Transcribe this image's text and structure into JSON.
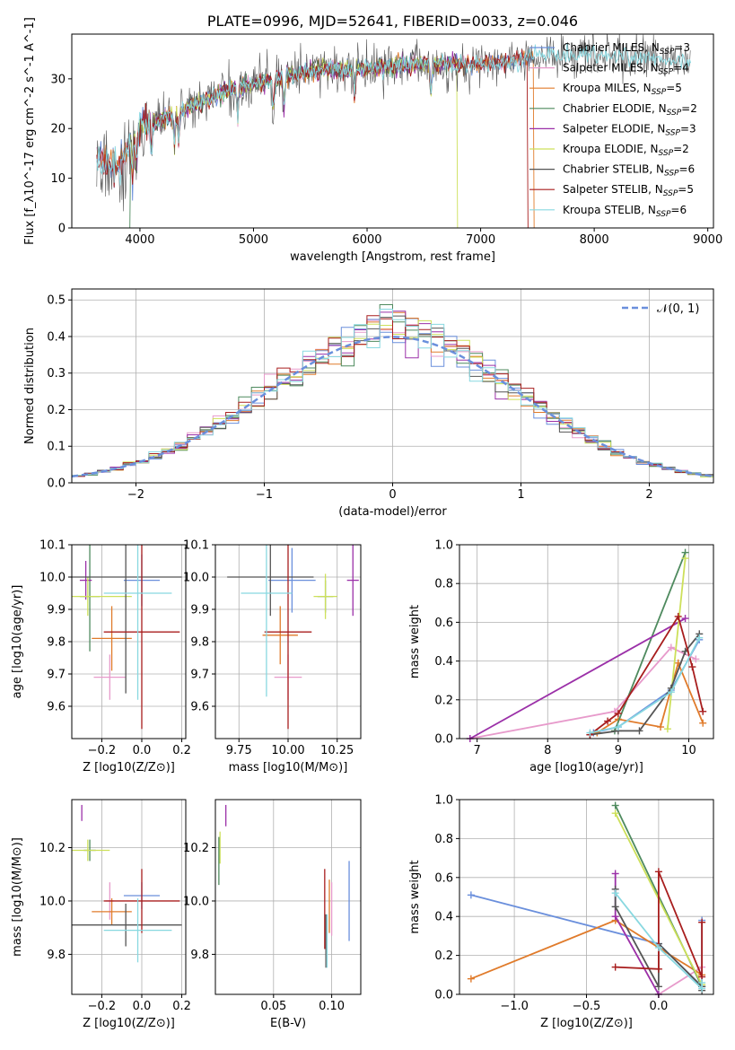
{
  "colors": {
    "Chabrier MILES": "#6a8fdc",
    "Salpeter MILES": "#e79acb",
    "Kroupa MILES": "#e07b2b",
    "Chabrier ELODIE": "#4e8a5e",
    "Salpeter ELODIE": "#9b30a8",
    "Kroupa ELODIE": "#cde05a",
    "Chabrier STELIB": "#555555",
    "Salpeter STELIB": "#a81e1e",
    "Kroupa STELIB": "#88d8e0",
    "gaussian": "#6a8fdc"
  },
  "chart_data": [
    {
      "type": "line",
      "title": "PLATE=0996, MJD=52641, FIBERID=0033, z=0.046",
      "xlabel": "wavelength [Angstrom, rest frame]",
      "ylabel": "Flux [f_λ10^-17 erg cm^-2 s^-1 A^-1]",
      "xlim": [
        3400,
        9050
      ],
      "ylim": [
        0,
        39
      ],
      "xticks": [
        4000,
        5000,
        6000,
        7000,
        8000,
        9000
      ],
      "yticks": [
        0,
        10,
        20,
        30
      ],
      "legend_position": "top-right",
      "series": [
        {
          "name": "Chabrier MILES, N_SSP=3",
          "name_main": "Chabrier MILES, N",
          "name_sub": "SSP",
          "name_end": "=3",
          "x_range": [
            3620,
            7480
          ]
        },
        {
          "name": "Salpeter MILES, N_SSP=4",
          "name_main": "Salpeter MILES, N",
          "name_sub": "SSP",
          "name_end": "=4",
          "x_range": [
            3620,
            7480
          ]
        },
        {
          "name": "Kroupa MILES, N_SSP=5",
          "name_main": "Kroupa MILES, N",
          "name_sub": "SSP",
          "name_end": "=5",
          "x_range": [
            3620,
            7480
          ]
        },
        {
          "name": "Chabrier ELODIE, N_SSP=2",
          "name_main": "Chabrier ELODIE, N",
          "name_sub": "SSP",
          "name_end": "=2",
          "x_range": [
            3900,
            6800
          ]
        },
        {
          "name": "Salpeter ELODIE, N_SSP=3",
          "name_main": "Salpeter ELODIE, N",
          "name_sub": "SSP",
          "name_end": "=3",
          "x_range": [
            3900,
            6800
          ]
        },
        {
          "name": "Kroupa ELODIE, N_SSP=2",
          "name_main": "Kroupa ELODIE, N",
          "name_sub": "SSP",
          "name_end": "=2",
          "x_range": [
            3900,
            6800
          ]
        },
        {
          "name": "Chabrier STELIB, N_SSP=6",
          "name_main": "Chabrier STELIB, N",
          "name_sub": "SSP",
          "name_end": "=6",
          "x_range": [
            3620,
            8850
          ]
        },
        {
          "name": "Salpeter STELIB, N_SSP=5",
          "name_main": "Salpeter STELIB, N",
          "name_sub": "SSP",
          "name_end": "=5",
          "x_range": [
            3620,
            7420
          ]
        },
        {
          "name": "Kroupa STELIB, N_SSP=6",
          "name_main": "Kroupa STELIB, N",
          "name_sub": "SSP",
          "name_end": "=6",
          "x_range": [
            3620,
            8850
          ]
        }
      ],
      "continuum": {
        "x": [
          3620,
          3800,
          4000,
          4400,
          4800,
          5200,
          5600,
          6000,
          6400,
          6800,
          7200,
          7500,
          8000,
          8500,
          8850
        ],
        "y": [
          14,
          12,
          20,
          24,
          28,
          30,
          32,
          32,
          33,
          33,
          33,
          35,
          35,
          34,
          33
        ]
      }
    },
    {
      "type": "area",
      "xlabel": "(data-model)/error",
      "ylabel": "Normed distribution",
      "xlim": [
        -2.5,
        2.5
      ],
      "ylim": [
        0,
        0.53
      ],
      "xticks": [
        -2,
        -1,
        0,
        1,
        2
      ],
      "yticks": [
        0.0,
        0.1,
        0.2,
        0.3,
        0.4,
        0.5
      ],
      "grid": true,
      "legend_position": "top-right",
      "gaussian_label": "𝒩(0, 1)",
      "bin_width": 0.1
    },
    {
      "type": "scatter",
      "xlabel": "Z [log10(Z/Z⊙)]",
      "ylabel": "age  [log10(age/yr)]",
      "xlim": [
        -0.35,
        0.22
      ],
      "ylim": [
        9.5,
        10.1
      ],
      "xticks": [
        -0.2,
        0.0,
        0.2
      ],
      "yticks": [
        9.6,
        9.7,
        9.8,
        9.9,
        10.0,
        10.1
      ],
      "grid": true,
      "points": [
        {
          "series": "Chabrier MILES",
          "x": 0.0,
          "y": 9.99,
          "xerr": 0.09,
          "yerr": 0.08
        },
        {
          "series": "Salpeter MILES",
          "x": -0.16,
          "y": 9.69,
          "xerr": 0.08,
          "yerr": 0.07
        },
        {
          "series": "Kroupa MILES",
          "x": -0.15,
          "y": 9.81,
          "xerr": 0.1,
          "yerr": 0.1
        },
        {
          "series": "Chabrier ELODIE",
          "x": -0.26,
          "y": 9.94,
          "xerr": 0.05,
          "yerr": 0.17
        },
        {
          "series": "Salpeter ELODIE",
          "x": -0.28,
          "y": 9.99,
          "xerr": 0.03,
          "yerr": 0.06
        },
        {
          "series": "Kroupa ELODIE",
          "x": -0.27,
          "y": 9.94,
          "xerr": 0.22,
          "yerr": 0.06
        },
        {
          "series": "Chabrier STELIB",
          "x": -0.08,
          "y": 10.0,
          "xerr": 0.28,
          "yerr": 0.36
        },
        {
          "series": "Salpeter STELIB",
          "x": 0.0,
          "y": 9.83,
          "xerr": 0.19,
          "yerr": 0.3
        },
        {
          "series": "Kroupa STELIB",
          "x": -0.02,
          "y": 9.95,
          "xerr": 0.17,
          "yerr": 0.33
        }
      ]
    },
    {
      "type": "scatter",
      "xlabel": "mass [log10(M/M⊙)]",
      "ylabel": "",
      "xlim": [
        9.63,
        10.37
      ],
      "ylim": [
        9.5,
        10.1
      ],
      "xticks": [
        9.75,
        10.0,
        10.25
      ],
      "yticks": [
        9.6,
        9.7,
        9.8,
        9.9,
        10.0,
        10.1
      ],
      "grid": true,
      "points": [
        {
          "series": "Chabrier MILES",
          "x": 10.02,
          "y": 9.99,
          "xerr": 0.12,
          "yerr": 0.1
        },
        {
          "series": "Salpeter MILES",
          "x": 10.0,
          "y": 9.69,
          "xerr": 0.07,
          "yerr": 0.07
        },
        {
          "series": "Kroupa MILES",
          "x": 9.96,
          "y": 9.82,
          "xerr": 0.09,
          "yerr": 0.09
        },
        {
          "series": "Chabrier ELODIE",
          "x": 10.19,
          "y": 9.94,
          "xerr": 0.04,
          "yerr": 0.05
        },
        {
          "series": "Salpeter ELODIE",
          "x": 10.33,
          "y": 9.99,
          "xerr": 0.03,
          "yerr": 0.11
        },
        {
          "series": "Kroupa ELODIE",
          "x": 10.19,
          "y": 9.94,
          "xerr": 0.06,
          "yerr": 0.07
        },
        {
          "series": "Chabrier STELIB",
          "x": 9.91,
          "y": 10.0,
          "xerr": 0.22,
          "yerr": 0.12
        },
        {
          "series": "Salpeter STELIB",
          "x": 10.0,
          "y": 9.83,
          "xerr": 0.12,
          "yerr": 0.3
        },
        {
          "series": "Kroupa STELIB",
          "x": 9.89,
          "y": 9.95,
          "xerr": 0.13,
          "yerr": 0.32
        }
      ]
    },
    {
      "type": "line",
      "xlabel": "age  [log10(age/yr)]",
      "ylabel": "mass weight",
      "xlim": [
        6.75,
        10.35
      ],
      "ylim": [
        0,
        1.0
      ],
      "xticks": [
        7,
        8,
        9,
        10
      ],
      "yticks": [
        0.0,
        0.2,
        0.4,
        0.6,
        0.8,
        1.0
      ],
      "grid": true,
      "series": [
        {
          "name": "Chabrier MILES",
          "x": [
            8.65,
            9.0,
            9.75,
            10.15
          ],
          "y": [
            0.03,
            0.06,
            0.25,
            0.51
          ]
        },
        {
          "name": "Salpeter MILES",
          "x": [
            6.9,
            8.95,
            9.75,
            10.1
          ],
          "y": [
            0.0,
            0.14,
            0.47,
            0.41
          ]
        },
        {
          "name": "Kroupa MILES",
          "x": [
            8.7,
            9.0,
            9.6,
            9.85,
            10.2
          ],
          "y": [
            0.03,
            0.1,
            0.06,
            0.39,
            0.08
          ]
        },
        {
          "name": "Chabrier ELODIE",
          "x": [
            8.95,
            9.95
          ],
          "y": [
            0.04,
            0.96
          ]
        },
        {
          "name": "Salpeter ELODIE",
          "x": [
            6.9,
            9.95
          ],
          "y": [
            0.0,
            0.62
          ]
        },
        {
          "name": "Kroupa ELODIE",
          "x": [
            9.7,
            9.95
          ],
          "y": [
            0.05,
            0.93
          ]
        },
        {
          "name": "Chabrier STELIB",
          "x": [
            8.6,
            9.0,
            9.3,
            9.75,
            9.95,
            10.15
          ],
          "y": [
            0.02,
            0.04,
            0.04,
            0.26,
            0.45,
            0.54
          ]
        },
        {
          "name": "Salpeter STELIB",
          "x": [
            8.6,
            8.85,
            9.0,
            9.85,
            10.05,
            10.2
          ],
          "y": [
            0.02,
            0.09,
            0.13,
            0.63,
            0.37,
            0.14
          ]
        },
        {
          "name": "Kroupa STELIB",
          "x": [
            8.6,
            9.0,
            9.75,
            10.15
          ],
          "y": [
            0.03,
            0.06,
            0.24,
            0.52
          ]
        }
      ]
    },
    {
      "type": "scatter",
      "xlabel": "Z [log10(Z/Z⊙)]",
      "ylabel": "mass [log10(M/M⊙)]",
      "xlim": [
        -0.35,
        0.22
      ],
      "ylim": [
        9.65,
        10.38
      ],
      "xticks": [
        -0.2,
        0.0,
        0.2
      ],
      "yticks": [
        9.8,
        10.0,
        10.2
      ],
      "grid": true,
      "points": [
        {
          "series": "Chabrier MILES",
          "x": 0.0,
          "y": 10.02,
          "xerr": 0.09,
          "yerr": 0.05
        },
        {
          "series": "Salpeter MILES",
          "x": -0.16,
          "y": 10.0,
          "xerr": 0.02,
          "yerr": 0.07
        },
        {
          "series": "Kroupa MILES",
          "x": -0.15,
          "y": 9.96,
          "xerr": 0.1,
          "yerr": 0.05
        },
        {
          "series": "Chabrier ELODIE",
          "x": -0.26,
          "y": 10.19,
          "xerr": 0.03,
          "yerr": 0.04
        },
        {
          "series": "Salpeter ELODIE",
          "x": -0.3,
          "y": 10.33,
          "xerr": 0.0,
          "yerr": 0.03
        },
        {
          "series": "Kroupa ELODIE",
          "x": -0.27,
          "y": 10.19,
          "xerr": 0.11,
          "yerr": 0.04
        },
        {
          "series": "Chabrier STELIB",
          "x": -0.08,
          "y": 9.91,
          "xerr": 0.28,
          "yerr": 0.08
        },
        {
          "series": "Salpeter STELIB",
          "x": 0.0,
          "y": 10.0,
          "xerr": 0.19,
          "yerr": 0.12
        },
        {
          "series": "Kroupa STELIB",
          "x": -0.02,
          "y": 9.89,
          "xerr": 0.17,
          "yerr": 0.12
        }
      ]
    },
    {
      "type": "scatter",
      "xlabel": "E(B-V)",
      "ylabel": "",
      "xlim": [
        0.0,
        0.125
      ],
      "ylim": [
        9.65,
        10.38
      ],
      "xticks": [
        0.05,
        0.1
      ],
      "yticks": [
        9.8,
        10.0,
        10.2
      ],
      "grid": true,
      "points": [
        {
          "series": "Chabrier MILES",
          "x": 0.115,
          "y": 10.0,
          "yerr": 0.15
        },
        {
          "series": "Salpeter MILES",
          "x": 0.1,
          "y": 9.97,
          "yerr": 0.1
        },
        {
          "series": "Kroupa MILES",
          "x": 0.098,
          "y": 9.98,
          "yerr": 0.1
        },
        {
          "series": "Chabrier ELODIE",
          "x": 0.003,
          "y": 10.15,
          "yerr": 0.09
        },
        {
          "series": "Salpeter ELODIE",
          "x": 0.009,
          "y": 10.32,
          "yerr": 0.04
        },
        {
          "series": "Kroupa ELODIE",
          "x": 0.004,
          "y": 10.2,
          "yerr": 0.06
        },
        {
          "series": "Chabrier STELIB",
          "x": 0.095,
          "y": 9.85,
          "yerr": 0.1
        },
        {
          "series": "Salpeter STELIB",
          "x": 0.094,
          "y": 9.97,
          "yerr": 0.15
        },
        {
          "series": "Kroupa STELIB",
          "x": 0.096,
          "y": 9.85,
          "yerr": 0.1
        }
      ]
    },
    {
      "type": "line",
      "xlabel": "Z [log10(Z/Z⊙)]",
      "ylabel": "mass weight",
      "xlim": [
        -1.38,
        0.38
      ],
      "ylim": [
        0,
        1.0
      ],
      "xticks": [
        -1.0,
        -0.5,
        0.0
      ],
      "yticks": [
        0.0,
        0.2,
        0.4,
        0.6,
        0.8,
        1.0
      ],
      "grid": true,
      "series": [
        {
          "name": "Chabrier MILES",
          "x": [
            -1.3,
            0.0,
            0.3,
            0.3
          ],
          "y": [
            0.51,
            0.26,
            0.04,
            0.38
          ]
        },
        {
          "name": "Salpeter MILES",
          "x": [
            -0.3,
            0.0,
            0.3
          ],
          "y": [
            0.4,
            0.0,
            0.14
          ]
        },
        {
          "name": "Kroupa MILES",
          "x": [
            -1.3,
            -0.3,
            0.3
          ],
          "y": [
            0.08,
            0.38,
            0.1
          ]
        },
        {
          "name": "Chabrier ELODIE",
          "x": [
            -0.3,
            0.3
          ],
          "y": [
            0.97,
            0.04
          ]
        },
        {
          "name": "Salpeter ELODIE",
          "x": [
            -0.3,
            -0.3,
            0.0
          ],
          "y": [
            0.62,
            0.4,
            0.0
          ]
        },
        {
          "name": "Kroupa ELODIE",
          "x": [
            -0.3,
            0.3
          ],
          "y": [
            0.93,
            0.05
          ]
        },
        {
          "name": "Chabrier STELIB",
          "x": [
            -0.3,
            -0.3,
            0.0,
            0.0,
            0.3,
            0.3
          ],
          "y": [
            0.54,
            0.45,
            0.04,
            0.26,
            0.04,
            0.02
          ]
        },
        {
          "name": "Salpeter STELIB",
          "x": [
            -0.3,
            0.0,
            0.0,
            0.3,
            0.3
          ],
          "y": [
            0.14,
            0.13,
            0.63,
            0.09,
            0.37
          ]
        },
        {
          "name": "Kroupa STELIB",
          "x": [
            -0.3,
            0.0,
            0.3,
            0.3
          ],
          "y": [
            0.52,
            0.24,
            0.03,
            0.06
          ]
        }
      ]
    }
  ]
}
